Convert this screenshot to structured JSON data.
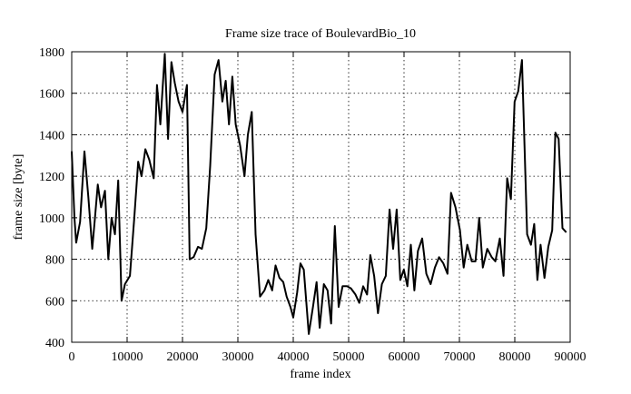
{
  "chart_data": {
    "type": "line",
    "title": "Frame size trace of BoulevardBio_10",
    "xlabel": "frame index",
    "ylabel": "frame size [byte]",
    "xlim": [
      0,
      90000
    ],
    "ylim": [
      400,
      1800
    ],
    "xticks": [
      0,
      10000,
      20000,
      30000,
      40000,
      50000,
      60000,
      70000,
      80000,
      90000
    ],
    "yticks": [
      400,
      600,
      800,
      1000,
      1200,
      1400,
      1600,
      1800
    ],
    "grid": true,
    "series": [
      {
        "color": "#000000",
        "x": [
          0,
          500,
          800,
          1500,
          2300,
          3000,
          3700,
          4200,
          4700,
          5300,
          6000,
          6600,
          7200,
          7800,
          8400,
          9000,
          9600,
          10500,
          11300,
          12000,
          12600,
          13300,
          14000,
          14800,
          15400,
          16000,
          16800,
          17400,
          18000,
          18600,
          19300,
          20000,
          20800,
          21300,
          22000,
          22800,
          23500,
          24300,
          25000,
          25800,
          26500,
          27200,
          27800,
          28400,
          29000,
          29600,
          30400,
          31200,
          31800,
          32500,
          33200,
          34000,
          34800,
          35500,
          36200,
          36800,
          37500,
          38200,
          38800,
          39500,
          40000,
          40700,
          41300,
          41900,
          42800,
          43565,
          44220,
          44770,
          45530,
          46190,
          46840,
          47500,
          48200,
          48900,
          49710,
          50410,
          51230,
          51920,
          52620,
          53320,
          53910,
          54600,
          55300,
          56000,
          56710,
          57400,
          58040,
          58680,
          59320,
          59960,
          60600,
          61230,
          61870,
          62500,
          63280,
          64030,
          64800,
          65570,
          66330,
          67100,
          67860,
          68500,
          69300,
          70100,
          70770,
          71430,
          72230,
          72900,
          73570,
          74230,
          75030,
          75830,
          76500,
          77300,
          77970,
          78630,
          79300,
          79970,
          80630,
          81300,
          81760,
          82230,
          82920,
          83500,
          84080,
          84660,
          85360,
          86050,
          86750,
          87330,
          87910,
          88600,
          89300
        ],
        "values": [
          1320,
          1000,
          880,
          980,
          1320,
          1100,
          850,
          1000,
          1160,
          1050,
          1130,
          800,
          1000,
          920,
          1180,
          600,
          680,
          720,
          1000,
          1270,
          1200,
          1330,
          1280,
          1190,
          1640,
          1450,
          1790,
          1380,
          1750,
          1650,
          1560,
          1510,
          1640,
          800,
          810,
          860,
          850,
          950,
          1250,
          1690,
          1760,
          1560,
          1660,
          1450,
          1680,
          1450,
          1350,
          1200,
          1400,
          1510,
          920,
          620,
          650,
          700,
          650,
          770,
          710,
          690,
          620,
          570,
          520,
          640,
          780,
          750,
          440,
          570,
          690,
          470,
          680,
          650,
          490,
          960,
          570,
          670,
          670,
          660,
          630,
          590,
          670,
          630,
          820,
          720,
          540,
          680,
          720,
          1040,
          850,
          1040,
          700,
          750,
          670,
          870,
          650,
          840,
          900,
          730,
          680,
          760,
          810,
          780,
          730,
          1120,
          1050,
          940,
          760,
          870,
          790,
          790,
          1000,
          760,
          850,
          810,
          790,
          900,
          720,
          1190,
          1090,
          1560,
          1610,
          1760,
          1350,
          920,
          870,
          970,
          700,
          870,
          710,
          860,
          940,
          1410,
          1380,
          950,
          930
        ]
      }
    ]
  }
}
